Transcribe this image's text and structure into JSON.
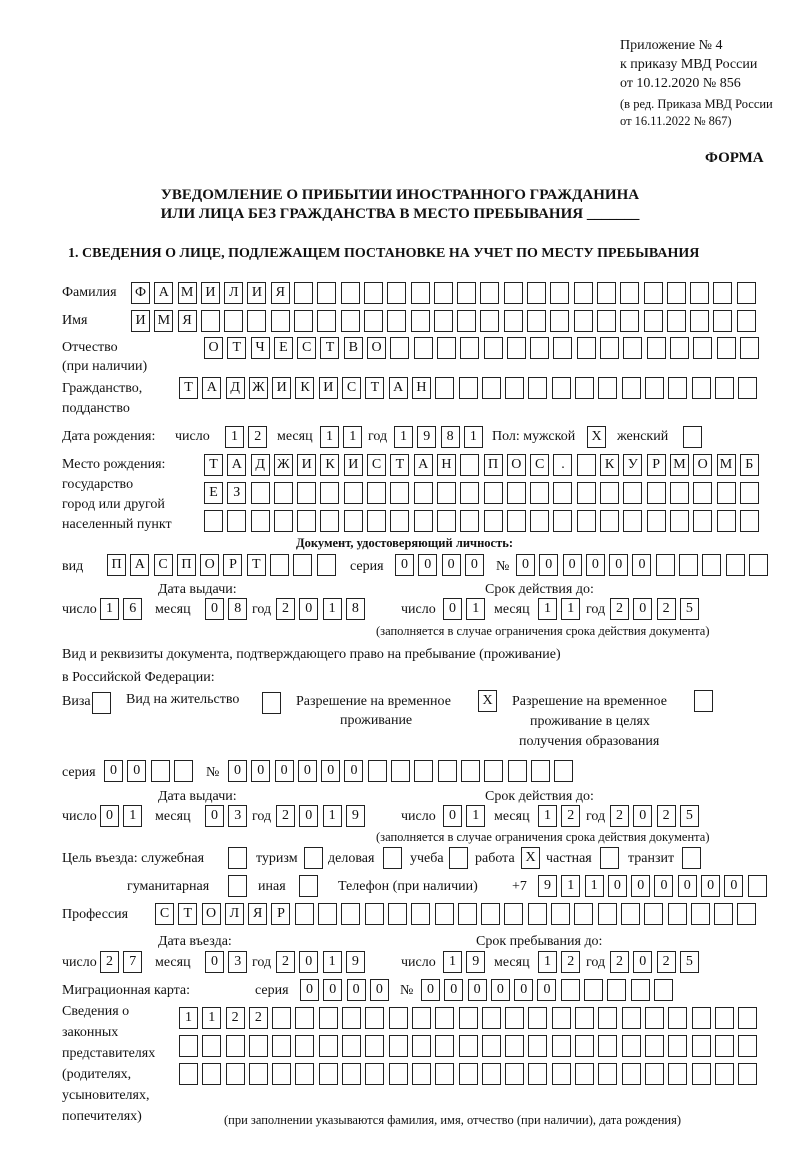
{
  "header": {
    "appendix": "Приложение № 4",
    "order_ref": "к приказу МВД России",
    "order_date": "от 10.12.2020 № 856",
    "revision_1": "(в ред. Приказа МВД России",
    "revision_2": "от 16.11.2022 № 867)",
    "form_label": "ФОРМА",
    "title_1": "УВЕДОМЛЕНИЕ О ПРИБЫТИИ ИНОСТРАННОГО ГРАЖДАНИНА",
    "title_2": "ИЛИ ЛИЦА БЕЗ ГРАЖДАНСТВА В МЕСТО ПРЕБЫВАНИЯ _______",
    "section_1": "1. СВЕДЕНИЯ О ЛИЦЕ, ПОДЛЕЖАЩЕМ ПОСТАНОВКЕ НА УЧЕТ ПО МЕСТУ ПРЕБЫВАНИЯ"
  },
  "labels": {
    "surname": "Фамилия",
    "name": "Имя",
    "patronymic_1": "Отчество",
    "patronymic_2": "(при наличии)",
    "citizenship_1": "Гражданство,",
    "citizenship_2": "подданство",
    "birth_date": "Дата рождения:",
    "day": "число",
    "month": "месяц",
    "year": "год",
    "sex_male": "Пол: мужской",
    "sex_female": "женский",
    "birthplace_1": "Место рождения:",
    "birthplace_2": "государство",
    "birthplace_3": "город или другой",
    "birthplace_4": "населенный пункт",
    "id_doc": "Документ, удостоверяющий личность:",
    "kind": "вид",
    "series": "серия",
    "number": "№",
    "issue_date": "Дата выдачи:",
    "valid_until": "Срок действия до:",
    "validity_note": "(заполняется в случае ограничения срока действия документа)",
    "residence_doc_1": "Вид и реквизиты документа, подтверждающего право на пребывание (проживание)",
    "residence_doc_2": "в Российской Федерации:",
    "visa": "Виза",
    "residence_permit": "Вид на жительство",
    "temp_residence_1": "Разрешение на временное",
    "temp_residence_2": "проживание",
    "temp_edu_1": "Разрешение на временное",
    "temp_edu_2": "проживание в целях",
    "temp_edu_3": "получения образования",
    "purpose": "Цель въезда: служебная",
    "tourism": "туризм",
    "business": "деловая",
    "study": "учеба",
    "work": "работа",
    "private": "частная",
    "transit": "транзит",
    "humanitarian": "гуманитарная",
    "other": "иная",
    "phone": "Телефон (при наличии)",
    "phone_prefix": "+7",
    "profession": "Профессия",
    "entry_date": "Дата въезда:",
    "stay_until": "Срок пребывания до:",
    "migration_card": "Миграционная карта:",
    "reps_1": "Сведения о",
    "reps_2": "законных",
    "reps_3": "представителях",
    "reps_4": "(родителях,",
    "reps_5": "усыновителях,",
    "reps_6": "попечителях)",
    "reps_note": "(при заполнении указываются фамилия, имя, отчество (при наличии), дата рождения)"
  },
  "person": {
    "surname": "ФАМИЛИЯ",
    "name": "ИМЯ",
    "patronymic": "ОТЧЕСТВО",
    "citizenship": "ТАДЖИКИСТАН",
    "birth_day": "12",
    "birth_month": "11",
    "birth_year": "1981",
    "sex_male": "X",
    "sex_female": "",
    "birthplace_1": "ТАДЖИКИСТАН ПОС. КУРМОМБ",
    "birthplace_2": "ЕЗ",
    "birthplace_3": ""
  },
  "id_document": {
    "kind": "ПАСПОРТ",
    "series": "0000",
    "number": "000000",
    "issue_day": "16",
    "issue_month": "08",
    "issue_year": "2018",
    "valid_day": "01",
    "valid_month": "11",
    "valid_year": "2025"
  },
  "residence_document": {
    "visa": "",
    "residence_permit": "",
    "temp_residence": "X",
    "temp_edu": "",
    "series": "00",
    "number": "000000",
    "issue_day": "01",
    "issue_month": "03",
    "issue_year": "2019",
    "valid_day": "01",
    "valid_month": "12",
    "valid_year": "2025"
  },
  "purpose": {
    "official": "",
    "tourism": "",
    "business": "",
    "study": "",
    "work": "X",
    "private": "",
    "transit": "",
    "humanitarian": "",
    "other": ""
  },
  "phone": "911000000",
  "profession": "СТОЛЯР",
  "entry": {
    "entry_day": "27",
    "entry_month": "03",
    "entry_year": "2019",
    "stay_day": "19",
    "stay_month": "12",
    "stay_year": "2025"
  },
  "migration_card": {
    "series": "0000",
    "number": "000000"
  },
  "representatives": {
    "line_1": "1122",
    "line_2": "",
    "line_3": ""
  }
}
